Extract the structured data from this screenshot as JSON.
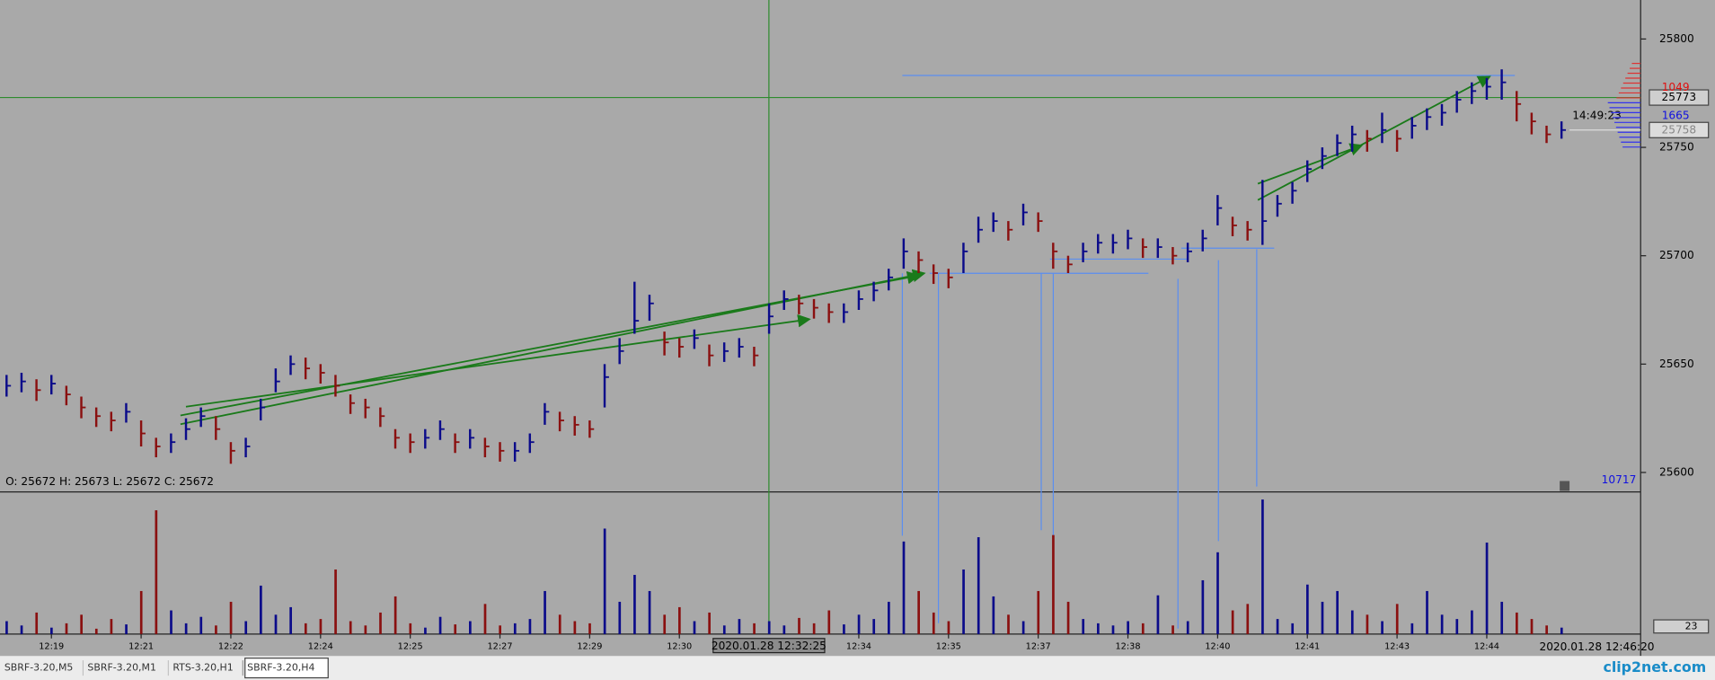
{
  "chart_data": {
    "type": "ohlc",
    "ohlc_text": "O: 25672  H: 25673  L: 25672  C: 25672",
    "cursor_time": "2020.01.28 12:32:25",
    "last_time": "2020.01.28 12:46:20",
    "timer": "14:49:23",
    "crosshair_price": 25773,
    "last_price": 25758,
    "profile_ask": 1049,
    "profile_bid": 1665,
    "total_volume": 10717,
    "volume_last": 23,
    "up_color": "#0b0b8a",
    "down_color": "#8a1010",
    "ylim": [
      25591,
      25818
    ],
    "yticks": [
      25600,
      25650,
      25700,
      25750,
      25800
    ],
    "vol_ylim": [
      0,
      130
    ],
    "categories": [
      null,
      null,
      null,
      "12:19",
      null,
      null,
      null,
      null,
      null,
      "12:21",
      null,
      null,
      null,
      null,
      null,
      "12:22",
      null,
      null,
      null,
      null,
      null,
      "12:24",
      null,
      null,
      null,
      null,
      null,
      "12:25",
      null,
      null,
      null,
      null,
      null,
      "12:27",
      null,
      null,
      null,
      null,
      null,
      "12:29",
      null,
      null,
      null,
      null,
      null,
      "12:30",
      null,
      null,
      null,
      null,
      null,
      null,
      null,
      null,
      null,
      null,
      null,
      "12:34",
      null,
      null,
      null,
      null,
      null,
      "12:35",
      null,
      null,
      null,
      null,
      null,
      "12:37",
      null,
      null,
      null,
      null,
      null,
      "12:38",
      null,
      null,
      null,
      null,
      null,
      "12:40",
      null,
      null,
      null,
      null,
      null,
      "12:41",
      null,
      null,
      null,
      null,
      null,
      "12:43",
      null,
      null,
      null,
      null,
      null,
      "12:44",
      null,
      null,
      null,
      null,
      null
    ],
    "high": [
      25645,
      25646,
      25643,
      25645,
      25640,
      25635,
      25630,
      25628,
      25632,
      25624,
      25616,
      25618,
      25625,
      25630,
      25626,
      25614,
      25616,
      25634,
      25648,
      25654,
      25653,
      25650,
      25645,
      25636,
      25634,
      25630,
      25620,
      25618,
      25620,
      25624,
      25618,
      25620,
      25616,
      25614,
      25614,
      25618,
      25632,
      25628,
      25626,
      25624,
      25650,
      25662,
      25688,
      25682,
      25665,
      25662,
      25666,
      25659,
      25660,
      25662,
      25658,
      25678,
      25684,
      25682,
      25680,
      25678,
      25678,
      25684,
      25688,
      25694,
      25708,
      25702,
      25696,
      25694,
      25706,
      25718,
      25720,
      25716,
      25724,
      25720,
      25706,
      25700,
      25706,
      25710,
      25710,
      25712,
      25708,
      25708,
      25704,
      25706,
      25712,
      25728,
      25718,
      25716,
      25735,
      25728,
      25734,
      25744,
      25750,
      25756,
      25760,
      25758,
      25766,
      25758,
      25764,
      25768,
      25770,
      25776,
      25780,
      25782,
      25786,
      25776,
      25766,
      25760,
      25762
    ],
    "low": [
      25635,
      25637,
      25633,
      25636,
      25631,
      25625,
      25621,
      25619,
      25623,
      25612,
      25607,
      25609,
      25615,
      25621,
      25615,
      25604,
      25607,
      25624,
      25637,
      25645,
      25643,
      25641,
      25635,
      25627,
      25625,
      25621,
      25611,
      25609,
      25611,
      25615,
      25609,
      25611,
      25607,
      25605,
      25605,
      25609,
      25622,
      25619,
      25617,
      25616,
      25630,
      25650,
      25664,
      25670,
      25654,
      25653,
      25657,
      25649,
      25651,
      25653,
      25649,
      25664,
      25675,
      25673,
      25671,
      25669,
      25669,
      25675,
      25679,
      25684,
      25694,
      25692,
      25687,
      25685,
      25692,
      25706,
      25711,
      25707,
      25714,
      25711,
      25694,
      25692,
      25697,
      25701,
      25701,
      25703,
      25699,
      25699,
      25696,
      25697,
      25702,
      25714,
      25709,
      25707,
      25705,
      25718,
      25724,
      25734,
      25740,
      25746,
      25748,
      25748,
      25752,
      25748,
      25754,
      25758,
      25760,
      25766,
      25770,
      25772,
      25772,
      25762,
      25756,
      25752,
      25754
    ],
    "close": [
      25640,
      25642,
      25638,
      25641,
      25636,
      25630,
      25626,
      25624,
      25628,
      25618,
      25612,
      25614,
      25620,
      25626,
      25620,
      25610,
      25612,
      25630,
      25642,
      25650,
      25648,
      25646,
      25640,
      25632,
      25630,
      25626,
      25616,
      25614,
      25616,
      25620,
      25614,
      25616,
      25612,
      25610,
      25610,
      25614,
      25628,
      25624,
      25622,
      25620,
      25644,
      25656,
      25670,
      25678,
      25660,
      25658,
      25662,
      25654,
      25656,
      25658,
      25654,
      25672,
      25680,
      25678,
      25676,
      25674,
      25674,
      25680,
      25684,
      25690,
      25702,
      25698,
      25692,
      25690,
      25702,
      25712,
      25716,
      25712,
      25720,
      25716,
      25702,
      25696,
      25702,
      25706,
      25706,
      25708,
      25704,
      25704,
      25700,
      25702,
      25708,
      25722,
      25714,
      25712,
      25716,
      25724,
      25730,
      25740,
      25746,
      25752,
      25756,
      25754,
      25758,
      25754,
      25760,
      25764,
      25766,
      25772,
      25776,
      25778,
      25780,
      25770,
      25762,
      25756,
      25758
    ],
    "volume": [
      12,
      8,
      20,
      6,
      10,
      18,
      5,
      14,
      9,
      40,
      115,
      22,
      10,
      16,
      8,
      30,
      12,
      45,
      18,
      25,
      10,
      14,
      60,
      12,
      8,
      20,
      35,
      10,
      6,
      16,
      9,
      12,
      28,
      8,
      10,
      14,
      40,
      18,
      12,
      10,
      98,
      30,
      55,
      40,
      18,
      25,
      12,
      20,
      8,
      14,
      10,
      12,
      8,
      15,
      10,
      22,
      9,
      18,
      14,
      30,
      86,
      40,
      20,
      12,
      60,
      90,
      35,
      18,
      12,
      40,
      92,
      30,
      14,
      10,
      8,
      12,
      10,
      36,
      8,
      12,
      50,
      76,
      22,
      28,
      125,
      14,
      10,
      46,
      30,
      40,
      22,
      18,
      12,
      28,
      10,
      40,
      18,
      14,
      22,
      85,
      30,
      20,
      14,
      8,
      6
    ]
  },
  "tabs": [
    "SBRF-3.20,M5",
    "SBRF-3.20,M1",
    "RTS-3.20,H1",
    "SBRF-3.20,H4"
  ],
  "watermark": "clip2net.com"
}
